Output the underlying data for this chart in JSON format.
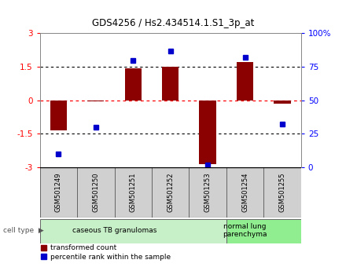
{
  "title": "GDS4256 / Hs2.434514.1.S1_3p_at",
  "samples": [
    "GSM501249",
    "GSM501250",
    "GSM501251",
    "GSM501252",
    "GSM501253",
    "GSM501254",
    "GSM501255"
  ],
  "bar_values": [
    -1.35,
    -0.05,
    1.42,
    1.5,
    -2.85,
    1.72,
    -0.15
  ],
  "dot_values": [
    10,
    30,
    80,
    87,
    2,
    82,
    32
  ],
  "ylim_left": [
    -3,
    3
  ],
  "ylim_right": [
    0,
    100
  ],
  "yticks_left": [
    -3,
    -1.5,
    0,
    1.5,
    3
  ],
  "ytick_labels_left": [
    "-3",
    "-1.5",
    "0",
    "1.5",
    "3"
  ],
  "yticks_right": [
    0,
    25,
    50,
    75,
    100
  ],
  "ytick_labels_right": [
    "0",
    "25",
    "50",
    "75",
    "100%"
  ],
  "bar_color": "#8B0000",
  "dot_color": "#0000CD",
  "cell_type_groups": [
    {
      "label": "caseous TB granulomas",
      "count": 5,
      "color": "#c8f0c8"
    },
    {
      "label": "normal lung\nparenchyma",
      "count": 2,
      "color": "#90ee90"
    }
  ],
  "legend_bar_label": "transformed count",
  "legend_dot_label": "percentile rank within the sample",
  "cell_type_label": "cell type",
  "sample_box_color": "#d0d0d0",
  "background_color": "#ffffff"
}
